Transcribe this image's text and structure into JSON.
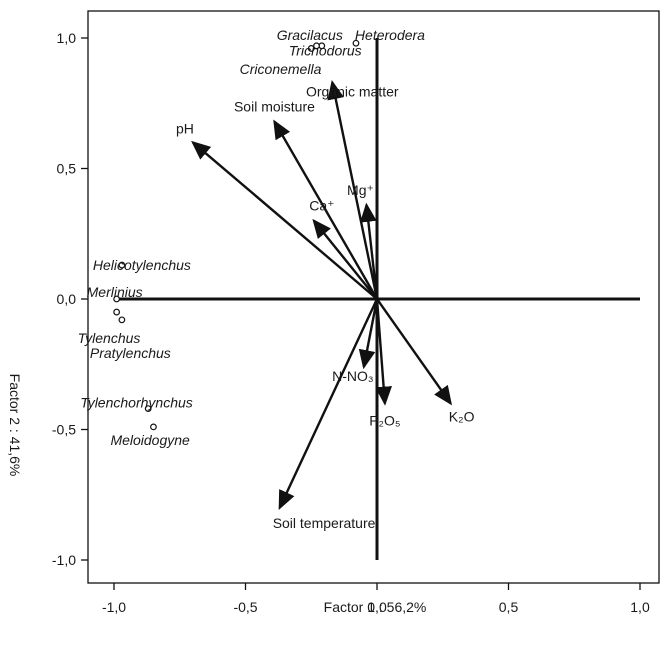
{
  "chart_data": {
    "type": "scatter",
    "xlabel": "Factor 1 : 56,2%",
    "ylabel": "Factor 2 : 41,6%",
    "xlim": [
      -1.1,
      1.1
    ],
    "ylim": [
      -1.1,
      1.1
    ],
    "x_ticks": [
      {
        "value": -1.0,
        "label": "-1,0"
      },
      {
        "value": -0.5,
        "label": "-0,5"
      },
      {
        "value": 0.0,
        "label": "0,0"
      },
      {
        "value": 0.5,
        "label": "0,5"
      },
      {
        "value": 1.0,
        "label": "1,0"
      }
    ],
    "y_ticks": [
      {
        "value": 1.0,
        "label": "1,0"
      },
      {
        "value": 0.5,
        "label": "0,5"
      },
      {
        "value": 0.0,
        "label": "0,0"
      },
      {
        "value": -0.5,
        "label": "-0,5"
      },
      {
        "value": -1.0,
        "label": "-1,0"
      }
    ],
    "grid": false,
    "variable_vectors": [
      {
        "name": "Organic matter",
        "x": -0.17,
        "y": 0.83
      },
      {
        "name": "Soil moisture",
        "x": -0.39,
        "y": 0.68
      },
      {
        "name": "pH",
        "x": -0.7,
        "y": 0.6
      },
      {
        "name": "Ca⁺",
        "x": -0.24,
        "y": 0.3
      },
      {
        "name": "Mg⁺",
        "x": -0.04,
        "y": 0.36
      },
      {
        "name": "N-NO₃",
        "x": -0.05,
        "y": -0.26
      },
      {
        "name": "P₂O₅",
        "x": 0.03,
        "y": -0.4
      },
      {
        "name": "K₂O",
        "x": 0.28,
        "y": -0.4
      },
      {
        "name": "Soil temperature",
        "x": -0.37,
        "y": -0.8
      }
    ],
    "species_points": [
      {
        "name": "Gracilacus",
        "x": -0.21,
        "y": 0.97
      },
      {
        "name": "Trichodorus",
        "x": -0.25,
        "y": 0.96
      },
      {
        "name": "Heterodera",
        "x": -0.08,
        "y": 0.98
      },
      {
        "name": "Criconemella",
        "x": -0.23,
        "y": 0.97
      },
      {
        "name": "Helicotylenchus",
        "x": -0.97,
        "y": 0.13
      },
      {
        "name": "Merlinius",
        "x": -0.99,
        "y": 0.0
      },
      {
        "name": "Tylenchus",
        "x": -0.99,
        "y": -0.05
      },
      {
        "name": "Pratylenchus",
        "x": -0.97,
        "y": -0.08
      },
      {
        "name": "Tylenchorhynchus",
        "x": -0.87,
        "y": -0.42
      },
      {
        "name": "Meloidogyne",
        "x": -0.85,
        "y": -0.49
      }
    ]
  }
}
